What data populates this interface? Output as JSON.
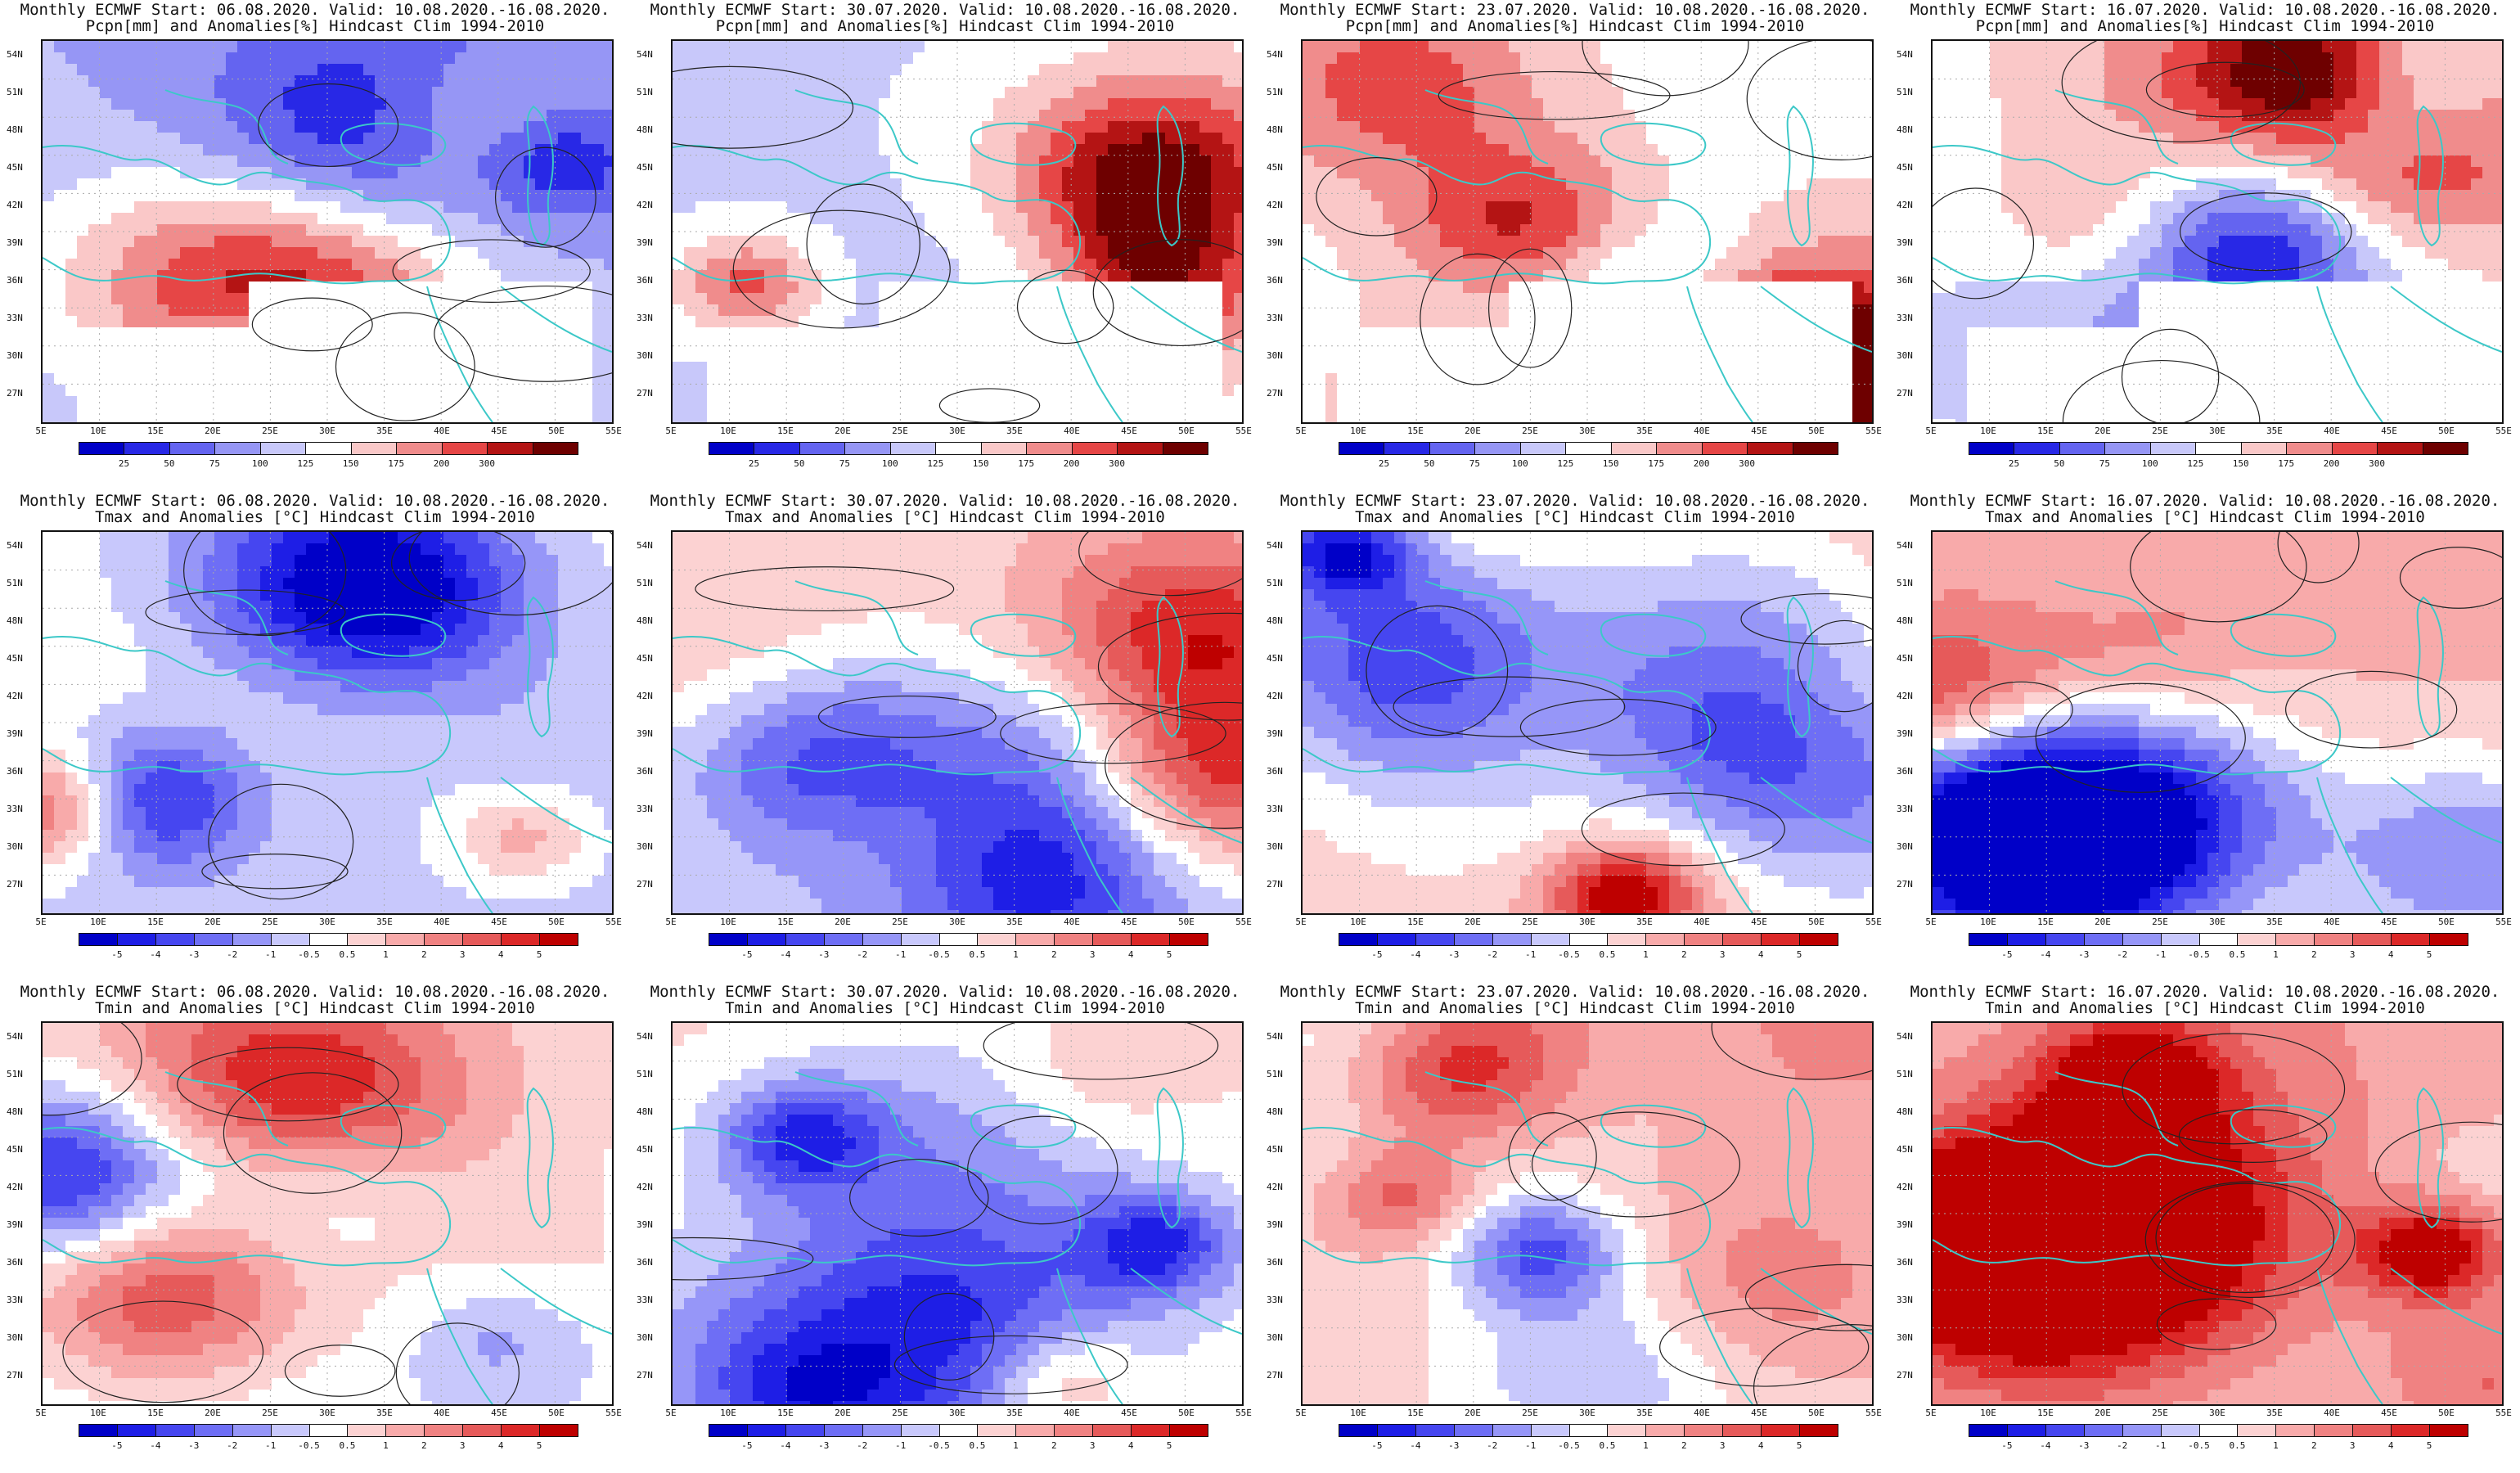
{
  "panels": [
    {
      "row": "precip",
      "title1": "Monthly ECMWF Start: 06.08.2020. Valid: 10.08.2020.-16.08.2020.",
      "title2": "Pcpn[mm] and Anomalies[%] Hindcast Clim 1994-2010",
      "seed": 11,
      "bias": -0.35
    },
    {
      "row": "precip",
      "title1": "Monthly ECMWF Start: 30.07.2020. Valid: 10.08.2020.-16.08.2020.",
      "title2": "Pcpn[mm] and Anomalies[%] Hindcast Clim 1994-2010",
      "seed": 23,
      "bias": -0.15
    },
    {
      "row": "precip",
      "title1": "Monthly ECMWF Start: 23.07.2020. Valid: 10.08.2020.-16.08.2020.",
      "title2": "Pcpn[mm] and Anomalies[%] Hindcast Clim 1994-2010",
      "seed": 37,
      "bias": 0.0
    },
    {
      "row": "precip",
      "title1": "Monthly ECMWF Start: 16.07.2020. Valid: 10.08.2020.-16.08.2020.",
      "title2": "Pcpn[mm] and Anomalies[%] Hindcast Clim 1994-2010",
      "seed": 41,
      "bias": 0.05
    },
    {
      "row": "tmax",
      "title1": "Monthly ECMWF Start: 06.08.2020. Valid: 10.08.2020.-16.08.2020.",
      "title2": "Tmax and Anomalies [°C] Hindcast Clim 1994-2010",
      "seed": 53,
      "bias": -0.05
    },
    {
      "row": "tmax",
      "title1": "Monthly ECMWF Start: 30.07.2020. Valid: 10.08.2020.-16.08.2020.",
      "title2": "Tmax and Anomalies [°C] Hindcast Clim 1994-2010",
      "seed": 61,
      "bias": 0.0
    },
    {
      "row": "tmax",
      "title1": "Monthly ECMWF Start: 23.07.2020. Valid: 10.08.2020.-16.08.2020.",
      "title2": "Tmax and Anomalies [°C] Hindcast Clim 1994-2010",
      "seed": 71,
      "bias": 0.35
    },
    {
      "row": "tmax",
      "title1": "Monthly ECMWF Start: 16.07.2020. Valid: 10.08.2020.-16.08.2020.",
      "title2": "Tmax and Anomalies [°C] Hindcast Clim 1994-2010",
      "seed": 83,
      "bias": 0.3
    },
    {
      "row": "tmin",
      "title1": "Monthly ECMWF Start: 06.08.2020. Valid: 10.08.2020.-16.08.2020.",
      "title2": "Tmin and Anomalies [°C] Hindcast Clim 1994-2010",
      "seed": 97,
      "bias": 0.0
    },
    {
      "row": "tmin",
      "title1": "Monthly ECMWF Start: 30.07.2020. Valid: 10.08.2020.-16.08.2020.",
      "title2": "Tmin and Anomalies [°C] Hindcast Clim 1994-2010",
      "seed": 101,
      "bias": 0.05
    },
    {
      "row": "tmin",
      "title1": "Monthly ECMWF Start: 23.07.2020. Valid: 10.08.2020.-16.08.2020.",
      "title2": "Tmin and Anomalies [°C] Hindcast Clim 1994-2010",
      "seed": 113,
      "bias": 0.3
    },
    {
      "row": "tmin",
      "title1": "Monthly ECMWF Start: 16.07.2020. Valid: 10.08.2020.-16.08.2020.",
      "title2": "Tmin and Anomalies [°C] Hindcast Clim 1994-2010",
      "seed": 127,
      "bias": 0.25
    }
  ],
  "lat_labels": [
    "54N",
    "51N",
    "48N",
    "45N",
    "42N",
    "39N",
    "36N",
    "33N",
    "30N",
    "27N"
  ],
  "lon_labels": [
    "5E",
    "10E",
    "15E",
    "20E",
    "25E",
    "30E",
    "35E",
    "40E",
    "45E",
    "50E",
    "55E"
  ],
  "legends": {
    "precip": {
      "ticks": [
        "25",
        "50",
        "75",
        "100",
        "125",
        "150",
        "175",
        "200",
        "300"
      ],
      "colors": [
        "#0000c8",
        "#2828e6",
        "#6464f0",
        "#9696f5",
        "#c8c8fa",
        "#ffffff",
        "#fac8c8",
        "#f08c8c",
        "#e64646",
        "#b41414",
        "#6e0000"
      ]
    },
    "temp": {
      "ticks": [
        "-5",
        "-4",
        "-3",
        "-2",
        "-1",
        "-0.5",
        "0.5",
        "1",
        "2",
        "3",
        "4",
        "5"
      ],
      "colors": [
        "#0000c8",
        "#1e1ee6",
        "#4646f0",
        "#6e6ef5",
        "#9696f8",
        "#c8c8fc",
        "#ffffff",
        "#fcd2d2",
        "#f8aaaa",
        "#f08282",
        "#e65a5a",
        "#dc2828",
        "#be0000"
      ]
    }
  },
  "colors": {
    "coastline": "#3cc8c8",
    "contour": "#222222",
    "grid_dots": "#aaaaaa"
  }
}
